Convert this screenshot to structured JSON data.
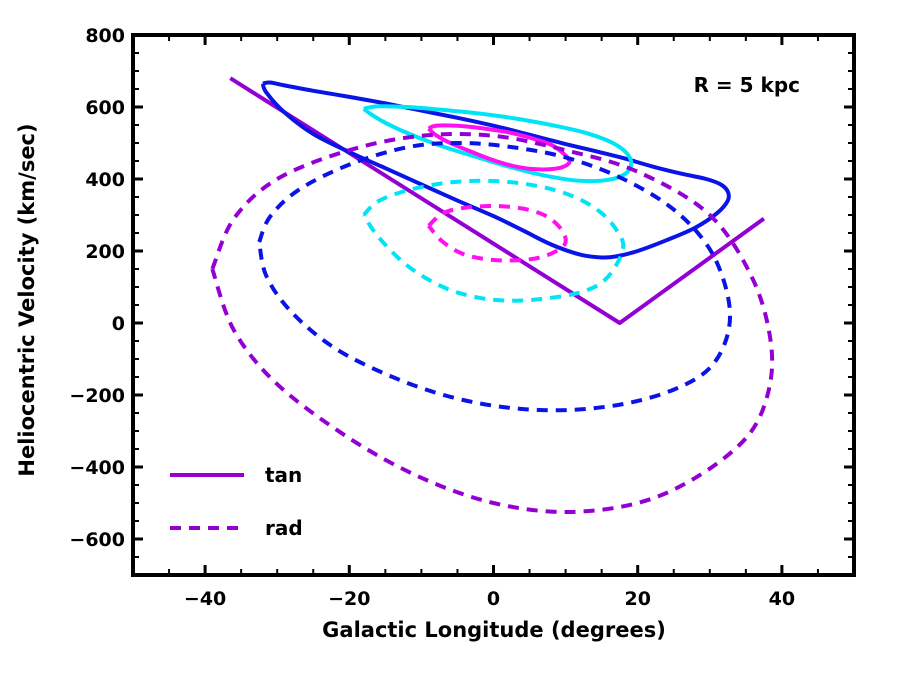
{
  "chart_data": {
    "type": "line",
    "xlabel": "Galactic Longitude (degrees)",
    "ylabel": "Heliocentric Velocity (km/sec)",
    "xlim": [
      -50,
      50
    ],
    "ylim": [
      -700,
      800
    ],
    "xticks": [
      -40,
      -20,
      0,
      20,
      40
    ],
    "xtick_labels": [
      "−40",
      "−20",
      "0",
      "20",
      "40"
    ],
    "yticks": [
      -600,
      -400,
      -200,
      0,
      200,
      400,
      600,
      800
    ],
    "ytick_labels": [
      "−600",
      "−400",
      "−200",
      "0",
      "200",
      "400",
      "600",
      "800"
    ],
    "annotation": "R = 5 kpc",
    "legend": {
      "position": "bottom-left",
      "entries": [
        {
          "label": "tan",
          "style": "solid",
          "color": "#9400d3"
        },
        {
          "label": "rad",
          "style": "dashed",
          "color": "#9400d3"
        }
      ]
    },
    "series": [
      {
        "name": "purple tan",
        "style": "solid",
        "color": "#9400d3",
        "x": [
          -36.5,
          17.5,
          37.5
        ],
        "y": [
          680,
          0,
          290
        ]
      },
      {
        "name": "blue tan",
        "style": "solid",
        "color": "#0a14e6",
        "x": [
          -32,
          -31,
          -29,
          -25,
          -20,
          -15,
          -10,
          -5,
          0,
          5,
          10,
          14,
          18,
          22,
          26,
          29.5,
          31.5,
          32.5,
          32.5,
          31,
          28,
          24,
          20,
          17,
          15,
          12,
          8,
          4,
          0,
          -5,
          -10,
          -15,
          -20,
          -25,
          -29,
          -31.5,
          -32
        ],
        "y": [
          665,
          668,
          660,
          645,
          628,
          610,
          590,
          570,
          548,
          523,
          497,
          478,
          458,
          435,
          415,
          400,
          385,
          365,
          340,
          305,
          265,
          230,
          200,
          185,
          182,
          190,
          218,
          258,
          297,
          340,
          385,
          430,
          475,
          525,
          585,
          640,
          665
        ]
      },
      {
        "name": "cyan tan",
        "style": "solid",
        "color": "#00e5f5",
        "x": [
          -18,
          -16,
          -12,
          -7,
          -2,
          3,
          8,
          13,
          17,
          19,
          18.5,
          16,
          12,
          7,
          2,
          -3,
          -8,
          -12,
          -15,
          -17,
          -18
        ],
        "y": [
          595,
          602,
          600,
          592,
          582,
          568,
          550,
          527,
          495,
          455,
          418,
          398,
          395,
          410,
          435,
          465,
          497,
          528,
          556,
          580,
          595
        ]
      },
      {
        "name": "magenta tan",
        "style": "solid",
        "color": "#ff10ef",
        "x": [
          -9,
          -8,
          -5,
          -2,
          2,
          5,
          8,
          10,
          10.5,
          9,
          6,
          3,
          0,
          -3,
          -6,
          -8,
          -9
        ],
        "y": [
          540,
          548,
          548,
          542,
          530,
          515,
          495,
          465,
          445,
          430,
          427,
          435,
          452,
          475,
          500,
          522,
          540
        ]
      },
      {
        "name": "purple rad",
        "style": "dashed",
        "color": "#9400d3",
        "x": [
          -39,
          -36,
          -30,
          -20,
          -10,
          0,
          10,
          20,
          30,
          36,
          38.5,
          38,
          35,
          28,
          20,
          10,
          0,
          -10,
          -20,
          -30,
          -36,
          -39
        ],
        "y": [
          150,
          290,
          400,
          480,
          520,
          520,
          480,
          420,
          300,
          120,
          -60,
          -200,
          -320,
          -430,
          -500,
          -525,
          -500,
          -430,
          -320,
          -170,
          -20,
          150
        ]
      },
      {
        "name": "blue rad",
        "style": "dashed",
        "color": "#0a14e6",
        "x": [
          -32.5,
          -31,
          -27,
          -20,
          -12,
          -5,
          2,
          10,
          18,
          25,
          30,
          32.5,
          32.5,
          30,
          25,
          18,
          10,
          2,
          -6,
          -14,
          -22,
          -28,
          -31.5,
          -32.5
        ],
        "y": [
          225,
          295,
          370,
          440,
          488,
          500,
          490,
          460,
          400,
          315,
          205,
          75,
          -30,
          -125,
          -185,
          -225,
          -242,
          -235,
          -205,
          -150,
          -70,
          30,
          130,
          225
        ]
      },
      {
        "name": "cyan rad",
        "style": "dashed",
        "color": "#00e5f5",
        "x": [
          -18,
          -16,
          -12,
          -7,
          -2,
          3,
          8,
          12,
          15,
          17,
          18,
          17,
          15,
          12,
          8,
          3,
          -2,
          -7,
          -12,
          -16,
          -18
        ],
        "y": [
          300,
          338,
          368,
          388,
          395,
          390,
          372,
          343,
          305,
          260,
          215,
          160,
          112,
          85,
          70,
          62,
          70,
          100,
          160,
          240,
          300
        ]
      },
      {
        "name": "magenta rad",
        "style": "dashed",
        "color": "#ff10ef",
        "x": [
          -9,
          -7,
          -4,
          0,
          4,
          7,
          9,
          10,
          9.5,
          7,
          4,
          0,
          -4,
          -7,
          -9
        ],
        "y": [
          270,
          305,
          320,
          325,
          318,
          300,
          270,
          235,
          210,
          185,
          175,
          175,
          190,
          225,
          270
        ]
      }
    ]
  }
}
